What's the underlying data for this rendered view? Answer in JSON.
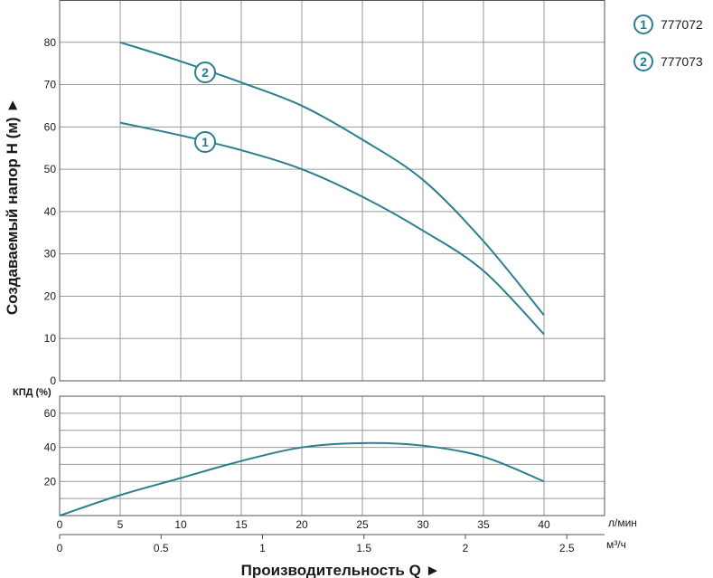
{
  "colors": {
    "curve": "#2a7f8f",
    "grid": "#9a9a9a",
    "frame": "#555555",
    "text": "#1a1a1a"
  },
  "legend": [
    {
      "marker": "1",
      "label": "777072"
    },
    {
      "marker": "2",
      "label": "777073"
    }
  ],
  "chart_data": [
    {
      "type": "line",
      "ylabel": "Создаваемый напор H (м) ►",
      "xlim": [
        0,
        45
      ],
      "ylim": [
        0,
        90
      ],
      "yticks": [
        0,
        10,
        20,
        30,
        40,
        50,
        60,
        70,
        80
      ],
      "grid": true,
      "series": [
        {
          "name": "1",
          "x": [
            5,
            10,
            15,
            20,
            25,
            30,
            35,
            40
          ],
          "y": [
            61,
            58,
            54.5,
            50,
            43.5,
            35.5,
            26,
            11
          ]
        },
        {
          "name": "2",
          "x": [
            5,
            10,
            15,
            20,
            25,
            30,
            35,
            40
          ],
          "y": [
            80,
            75.5,
            70.5,
            65,
            57,
            47.5,
            33,
            15.5
          ]
        }
      ]
    },
    {
      "type": "line",
      "ylabel": "КПД (%)",
      "xlim": [
        0,
        45
      ],
      "ylim": [
        0,
        70
      ],
      "yticks": [
        20,
        40,
        60
      ],
      "grid": true,
      "series": [
        {
          "x": [
            0,
            5,
            10,
            15,
            20,
            25,
            30,
            35,
            40
          ],
          "y": [
            0,
            12,
            22,
            32,
            40,
            42.5,
            41,
            34.5,
            20
          ]
        }
      ]
    }
  ],
  "x_axis_lpm": {
    "unit": "л/мин",
    "ticks": [
      "0",
      "5",
      "10",
      "15",
      "20",
      "25",
      "30",
      "35",
      "40"
    ]
  },
  "x_axis_m3h": {
    "unit": "м³/ч",
    "ticks": [
      "0",
      "0.5",
      "1",
      "1.5",
      "2",
      "2.5"
    ],
    "values": [
      0,
      0.5,
      1,
      1.5,
      2,
      2.5
    ]
  },
  "xlabel": "Производительность Q ►"
}
